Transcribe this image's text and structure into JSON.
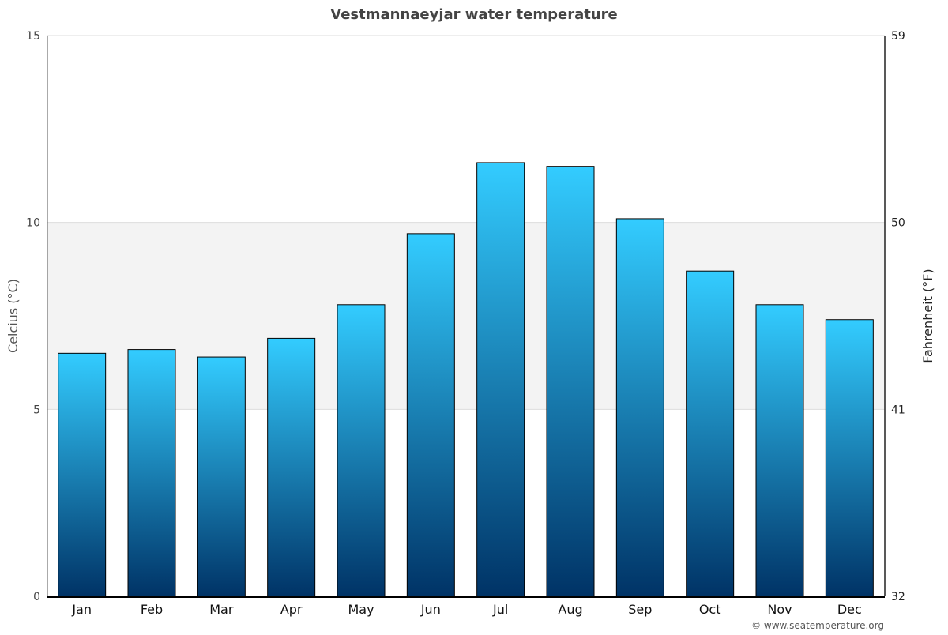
{
  "chart_data": {
    "type": "bar",
    "title": "Vestmannaeyjar water temperature",
    "categories": [
      "Jan",
      "Feb",
      "Mar",
      "Apr",
      "May",
      "Jun",
      "Jul",
      "Aug",
      "Sep",
      "Oct",
      "Nov",
      "Dec"
    ],
    "values": [
      6.5,
      6.6,
      6.4,
      6.9,
      7.8,
      9.7,
      11.6,
      11.5,
      10.1,
      8.7,
      7.8,
      7.4
    ],
    "ylabel": "Celcius (°C)",
    "ylabel_right": "Fahrenheit (°F)",
    "ylim": [
      0,
      15
    ],
    "yticks": [
      "0",
      "5",
      "10",
      "15"
    ],
    "yticks_right": [
      "32",
      "41",
      "50",
      "59"
    ],
    "grid": true,
    "highlight_band": [
      5,
      10
    ],
    "colors": {
      "bar_top": "#33ccff",
      "bar_bottom": "#003366",
      "band": "#f3f3f3"
    }
  },
  "footer": {
    "credit": "© www.seatemperature.org"
  }
}
